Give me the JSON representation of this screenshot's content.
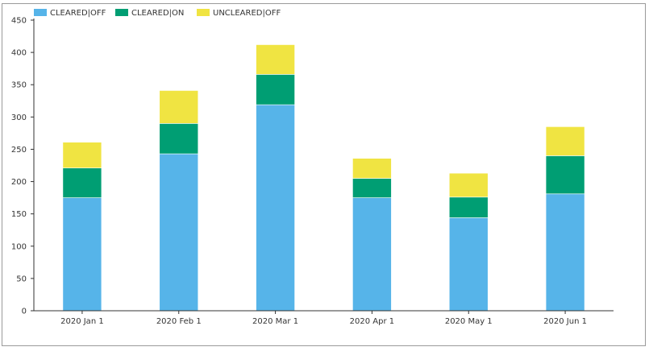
{
  "chart_data": {
    "type": "bar",
    "stacked": true,
    "categories": [
      "2020 Jan 1",
      "2020 Feb 1",
      "2020 Mar 1",
      "2020 Apr 1",
      "2020 May 1",
      "2020 Jun 1"
    ],
    "series": [
      {
        "name": "CLEARED|OFF",
        "color": "#56b4e9",
        "values": [
          175,
          243,
          319,
          175,
          144,
          181
        ]
      },
      {
        "name": "CLEARED|ON",
        "color": "#009e73",
        "values": [
          46,
          47,
          47,
          30,
          32,
          59
        ]
      },
      {
        "name": "UNCLEARED|OFF",
        "color": "#f0e442",
        "values": [
          40,
          51,
          46,
          31,
          37,
          45
        ]
      }
    ],
    "ylim": [
      0,
      450
    ],
    "yticks": [
      0,
      50,
      100,
      150,
      200,
      250,
      300,
      350,
      400,
      450
    ],
    "legend_position": "top-left",
    "grid": false
  }
}
